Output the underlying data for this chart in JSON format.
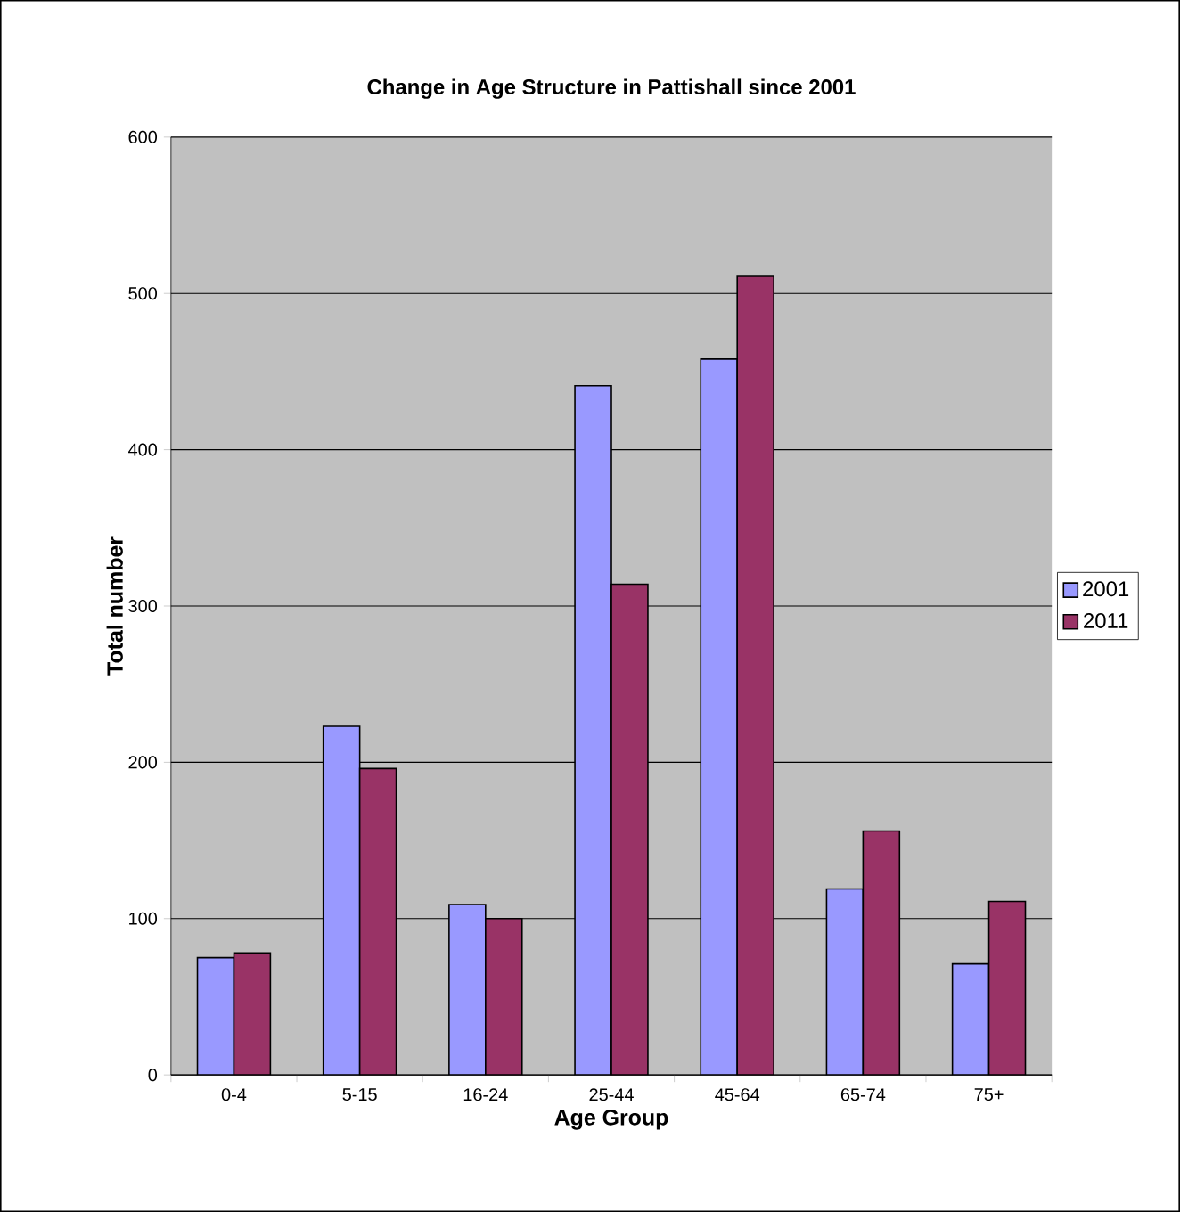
{
  "chart_data": {
    "type": "bar",
    "title": "Change in Age Structure in Pattishall since 2001",
    "xlabel": "Age Group",
    "ylabel": "Total number",
    "categories": [
      "0-4",
      "5-15",
      "16-24",
      "25-44",
      "45-64",
      "65-74",
      "75+"
    ],
    "series": [
      {
        "name": "2001",
        "color": "#9999ff",
        "values": [
          75,
          223,
          109,
          441,
          458,
          119,
          71
        ]
      },
      {
        "name": "2011",
        "color": "#993366",
        "values": [
          78,
          196,
          100,
          314,
          511,
          156,
          111
        ]
      }
    ],
    "ylim": [
      0,
      600
    ],
    "yticks": [
      0,
      100,
      200,
      300,
      400,
      500,
      600
    ],
    "grid": "y",
    "legend": "right"
  }
}
